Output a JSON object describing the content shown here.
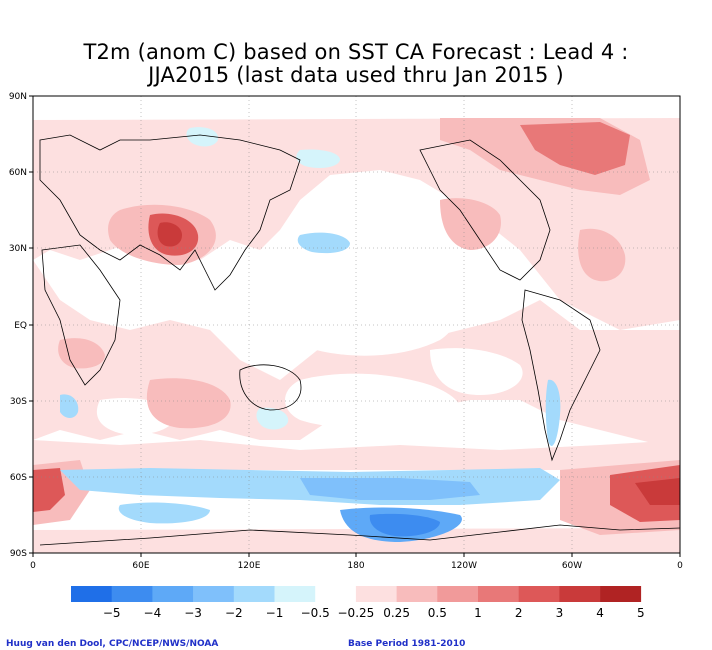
{
  "title": {
    "line1": "T2m (anom C) based on SST CA Forecast : Lead 4 :",
    "line2": "JJA2015 (last data used thru Jan 2015 )"
  },
  "map": {
    "lat_labels": [
      "90N",
      "60N",
      "30N",
      "EQ",
      "30S",
      "60S",
      "90S"
    ],
    "lon_labels": [
      "0",
      "60E",
      "120E",
      "180",
      "120W",
      "60W",
      "0"
    ]
  },
  "legend": {
    "colors": [
      "#1f6fe8",
      "#3d8cf0",
      "#5ea9f7",
      "#7fc0fb",
      "#a3dafc",
      "#d5f4fb",
      "#ffffff",
      "#fde0e0",
      "#f8bcbc",
      "#f19a9a",
      "#e87878",
      "#dd5858",
      "#c93a3a",
      "#b02323"
    ],
    "labels": [
      "−5",
      "−4",
      "−3",
      "−2",
      "−1",
      "−0.5",
      "−0.25",
      "0.25",
      "0.5",
      "1",
      "2",
      "3",
      "4",
      "5"
    ]
  },
  "credits": {
    "left": "Huug van den Dool, CPC/NCEP/NWS/NOAA",
    "right": "Base Period 1981-2010"
  }
}
